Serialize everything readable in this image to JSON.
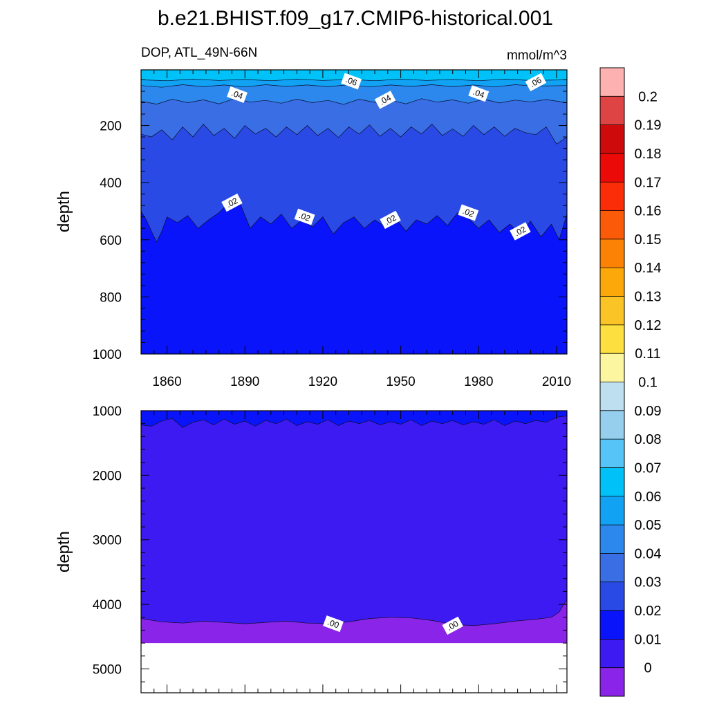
{
  "figure": {
    "title": "b.e21.BHIST.f09_g17.CMIP6-historical.001",
    "left_subtitle": "DOP, ATL_49N-66N",
    "right_subtitle": "mmol/m^3"
  },
  "colors": {
    "levels": [
      "#8A24E8",
      "#3D1AF2",
      "#0A14FA",
      "#2A4AE6",
      "#3A6EE4",
      "#2C88EC",
      "#12A2F4",
      "#00C2F8",
      "#56C4F6",
      "#96CEEE",
      "#BEDFF0",
      "#FDF6A0",
      "#FDE040",
      "#FBC426",
      "#FCA80A",
      "#FB8204",
      "#FB5A08",
      "#FB2C08",
      "#EC0A08",
      "#CE0A0A",
      "#DE4444",
      "#FDB1B1"
    ]
  },
  "chart_data": [
    {
      "type": "contour",
      "panel": "upper",
      "xlabel": "",
      "ylabel": "depth",
      "xlim": [
        1850,
        2014
      ],
      "ylim": [
        1000,
        5
      ],
      "x_ticks": [
        1860,
        1890,
        1920,
        1950,
        1980,
        2010
      ],
      "y_ticks": [
        200,
        400,
        600,
        800,
        1000
      ],
      "contour_levels": [
        0.01,
        0.02,
        0.03,
        0.04,
        0.05,
        0.06
      ],
      "contour_depths": {
        "0.02": [
          [
            1850,
            500
          ],
          [
            1852,
            530
          ],
          [
            1854,
            570
          ],
          [
            1856,
            608
          ],
          [
            1858,
            570
          ],
          [
            1860,
            520
          ],
          [
            1864,
            540
          ],
          [
            1868,
            515
          ],
          [
            1872,
            560
          ],
          [
            1876,
            530
          ],
          [
            1880,
            505
          ],
          [
            1884,
            470
          ],
          [
            1886,
            452
          ],
          [
            1888,
            470
          ],
          [
            1892,
            560
          ],
          [
            1896,
            520
          ],
          [
            1900,
            545
          ],
          [
            1904,
            510
          ],
          [
            1908,
            560
          ],
          [
            1912,
            530
          ],
          [
            1916,
            555
          ],
          [
            1920,
            520
          ],
          [
            1924,
            580
          ],
          [
            1928,
            540
          ],
          [
            1932,
            520
          ],
          [
            1936,
            560
          ],
          [
            1940,
            530
          ],
          [
            1944,
            555
          ],
          [
            1948,
            525
          ],
          [
            1952,
            570
          ],
          [
            1956,
            530
          ],
          [
            1960,
            545
          ],
          [
            1964,
            515
          ],
          [
            1968,
            550
          ],
          [
            1972,
            505
          ],
          [
            1976,
            525
          ],
          [
            1980,
            560
          ],
          [
            1984,
            530
          ],
          [
            1988,
            575
          ],
          [
            1992,
            545
          ],
          [
            1996,
            580
          ],
          [
            2000,
            535
          ],
          [
            2004,
            590
          ],
          [
            2008,
            545
          ],
          [
            2011,
            600
          ],
          [
            2014,
            510
          ]
        ],
        "0.03": [
          [
            1850,
            230
          ],
          [
            1854,
            240
          ],
          [
            1858,
            215
          ],
          [
            1862,
            250
          ],
          [
            1866,
            205
          ],
          [
            1870,
            240
          ],
          [
            1874,
            195
          ],
          [
            1878,
            235
          ],
          [
            1882,
            210
          ],
          [
            1886,
            245
          ],
          [
            1890,
            200
          ],
          [
            1894,
            230
          ],
          [
            1898,
            210
          ],
          [
            1902,
            240
          ],
          [
            1906,
            205
          ],
          [
            1910,
            232
          ],
          [
            1914,
            200
          ],
          [
            1918,
            235
          ],
          [
            1922,
            210
          ],
          [
            1926,
            242
          ],
          [
            1930,
            205
          ],
          [
            1934,
            230
          ],
          [
            1938,
            198
          ],
          [
            1942,
            238
          ],
          [
            1946,
            210
          ],
          [
            1950,
            240
          ],
          [
            1954,
            205
          ],
          [
            1958,
            230
          ],
          [
            1962,
            195
          ],
          [
            1966,
            235
          ],
          [
            1970,
            212
          ],
          [
            1974,
            238
          ],
          [
            1978,
            200
          ],
          [
            1982,
            232
          ],
          [
            1986,
            205
          ],
          [
            1990,
            238
          ],
          [
            1994,
            210
          ],
          [
            1998,
            225
          ],
          [
            2002,
            232
          ],
          [
            2006,
            205
          ],
          [
            2010,
            265
          ],
          [
            2014,
            240
          ]
        ],
        "0.04": [
          [
            1850,
            115
          ],
          [
            1856,
            125
          ],
          [
            1862,
            108
          ],
          [
            1868,
            120
          ],
          [
            1874,
            110
          ],
          [
            1880,
            124
          ],
          [
            1886,
            106
          ],
          [
            1892,
            118
          ],
          [
            1898,
            112
          ],
          [
            1904,
            122
          ],
          [
            1910,
            108
          ],
          [
            1916,
            120
          ],
          [
            1922,
            112
          ],
          [
            1928,
            126
          ],
          [
            1934,
            108
          ],
          [
            1940,
            119
          ],
          [
            1946,
            111
          ],
          [
            1952,
            124
          ],
          [
            1958,
            106
          ],
          [
            1964,
            118
          ],
          [
            1970,
            110
          ],
          [
            1976,
            122
          ],
          [
            1982,
            108
          ],
          [
            1988,
            121
          ],
          [
            1994,
            111
          ],
          [
            2000,
            117
          ],
          [
            2006,
            109
          ],
          [
            2014,
            120
          ]
        ],
        "0.05": [
          [
            1850,
            60
          ],
          [
            1858,
            66
          ],
          [
            1866,
            57
          ],
          [
            1874,
            64
          ],
          [
            1882,
            58
          ],
          [
            1890,
            65
          ],
          [
            1898,
            57
          ],
          [
            1906,
            63
          ],
          [
            1914,
            58
          ],
          [
            1922,
            64
          ],
          [
            1930,
            57
          ],
          [
            1938,
            65
          ],
          [
            1946,
            58
          ],
          [
            1954,
            63
          ],
          [
            1962,
            57
          ],
          [
            1970,
            64
          ],
          [
            1978,
            58
          ],
          [
            1986,
            65
          ],
          [
            1994,
            57
          ],
          [
            2002,
            62
          ],
          [
            2014,
            60
          ]
        ],
        "0.06": [
          [
            1850,
            40
          ],
          [
            1860,
            43
          ],
          [
            1870,
            38
          ],
          [
            1880,
            42
          ],
          [
            1890,
            39
          ],
          [
            1900,
            43
          ],
          [
            1910,
            38
          ],
          [
            1920,
            42
          ],
          [
            1930,
            39
          ],
          [
            1940,
            43
          ],
          [
            1950,
            38
          ],
          [
            1960,
            42
          ],
          [
            1970,
            39
          ],
          [
            1980,
            43
          ],
          [
            1990,
            38
          ],
          [
            2000,
            42
          ],
          [
            2014,
            40
          ]
        ]
      },
      "annotations": [
        {
          "text": ".06",
          "x": 1931,
          "y": 45
        },
        {
          "text": ".06",
          "x": 2002,
          "y": 48
        },
        {
          "text": ".04",
          "x": 1887,
          "y": 92
        },
        {
          "text": ".04",
          "x": 1944,
          "y": 110
        },
        {
          "text": ".04",
          "x": 1980,
          "y": 88
        },
        {
          "text": ".02",
          "x": 1885,
          "y": 470
        },
        {
          "text": ".02",
          "x": 1913,
          "y": 520
        },
        {
          "text": ".02",
          "x": 1946,
          "y": 530
        },
        {
          "text": ".02",
          "x": 1976,
          "y": 505
        },
        {
          "text": ".02",
          "x": 1996,
          "y": 570
        }
      ]
    },
    {
      "type": "contour",
      "panel": "lower",
      "xlabel": "",
      "ylabel": "depth",
      "xlim": [
        1850,
        2014
      ],
      "ylim": [
        5370,
        1000
      ],
      "y_ticks": [
        1000,
        2000,
        3000,
        4000,
        5000
      ],
      "bottom_depth": 4600,
      "contour_levels": [
        0.0,
        0.01
      ],
      "contour_depths": {
        "0.01": [
          [
            1850,
            1220
          ],
          [
            1854,
            1240
          ],
          [
            1858,
            1160
          ],
          [
            1862,
            1120
          ],
          [
            1866,
            1260
          ],
          [
            1870,
            1180
          ],
          [
            1874,
            1140
          ],
          [
            1878,
            1220
          ],
          [
            1882,
            1130
          ],
          [
            1886,
            1210
          ],
          [
            1890,
            1160
          ],
          [
            1894,
            1240
          ],
          [
            1898,
            1150
          ],
          [
            1902,
            1200
          ],
          [
            1906,
            1130
          ],
          [
            1910,
            1230
          ],
          [
            1914,
            1170
          ],
          [
            1918,
            1210
          ],
          [
            1922,
            1140
          ],
          [
            1926,
            1230
          ],
          [
            1930,
            1160
          ],
          [
            1934,
            1200
          ],
          [
            1938,
            1150
          ],
          [
            1942,
            1220
          ],
          [
            1946,
            1170
          ],
          [
            1950,
            1210
          ],
          [
            1954,
            1140
          ],
          [
            1958,
            1230
          ],
          [
            1962,
            1160
          ],
          [
            1966,
            1200
          ],
          [
            1970,
            1150
          ],
          [
            1974,
            1220
          ],
          [
            1978,
            1170
          ],
          [
            1982,
            1210
          ],
          [
            1986,
            1140
          ],
          [
            1990,
            1230
          ],
          [
            1994,
            1160
          ],
          [
            1998,
            1200
          ],
          [
            2002,
            1150
          ],
          [
            2006,
            1180
          ],
          [
            2010,
            1100
          ],
          [
            2014,
            1080
          ]
        ],
        "0.0": [
          [
            1850,
            4220
          ],
          [
            1858,
            4270
          ],
          [
            1866,
            4290
          ],
          [
            1874,
            4260
          ],
          [
            1882,
            4280
          ],
          [
            1890,
            4300
          ],
          [
            1898,
            4280
          ],
          [
            1906,
            4260
          ],
          [
            1914,
            4290
          ],
          [
            1922,
            4300
          ],
          [
            1930,
            4270
          ],
          [
            1938,
            4220
          ],
          [
            1946,
            4200
          ],
          [
            1954,
            4210
          ],
          [
            1962,
            4250
          ],
          [
            1970,
            4310
          ],
          [
            1978,
            4330
          ],
          [
            1986,
            4300
          ],
          [
            1994,
            4260
          ],
          [
            2002,
            4230
          ],
          [
            2008,
            4200
          ],
          [
            2011,
            4120
          ],
          [
            2014,
            3920
          ]
        ]
      },
      "annotations": [
        {
          "text": ".00",
          "x": 1924,
          "y": 4300
        },
        {
          "text": ".00",
          "x": 1970,
          "y": 4330
        }
      ]
    },
    {
      "type": "colorbar",
      "labels": [
        "0",
        "0.01",
        "0.02",
        "0.03",
        "0.04",
        "0.05",
        "0.06",
        "0.07",
        "0.08",
        "0.09",
        "0.1",
        "0.11",
        "0.12",
        "0.13",
        "0.14",
        "0.15",
        "0.16",
        "0.17",
        "0.18",
        "0.19",
        "0.2"
      ]
    }
  ]
}
